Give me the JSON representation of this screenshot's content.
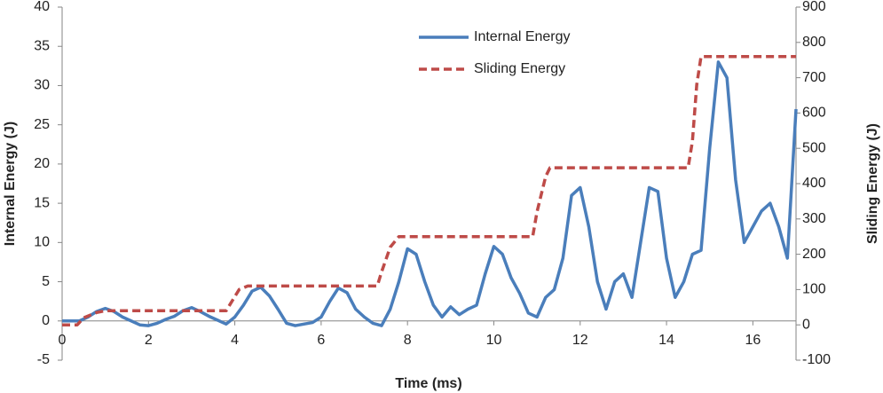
{
  "chart_data": {
    "type": "line",
    "xlabel": "Time (ms)",
    "ylabel": "Internal Energy (J)",
    "y2label": "Sliding Energy (J)",
    "xlim": [
      0,
      17
    ],
    "xticks": [
      0,
      2,
      4,
      6,
      8,
      10,
      12,
      14,
      16
    ],
    "ylim": [
      -5,
      40
    ],
    "yticks": [
      -5,
      0,
      5,
      10,
      15,
      20,
      25,
      30,
      35,
      40
    ],
    "y2lim": [
      -100,
      900
    ],
    "y2ticks": [
      -100,
      0,
      100,
      200,
      300,
      400,
      500,
      600,
      700,
      800,
      900
    ],
    "grid": false,
    "legend": "top-center",
    "series": [
      {
        "name": "Internal Energy",
        "color": "#4a7ebb",
        "style": "solid",
        "x": [
          0,
          0.2,
          0.4,
          0.6,
          0.8,
          1.0,
          1.2,
          1.4,
          1.6,
          1.8,
          2.0,
          2.2,
          2.4,
          2.6,
          2.8,
          3.0,
          3.2,
          3.4,
          3.6,
          3.8,
          4.0,
          4.2,
          4.4,
          4.6,
          4.8,
          5.0,
          5.2,
          5.4,
          5.6,
          5.8,
          6.0,
          6.2,
          6.4,
          6.6,
          6.8,
          7.0,
          7.2,
          7.4,
          7.6,
          7.8,
          8.0,
          8.2,
          8.4,
          8.6,
          8.8,
          9.0,
          9.2,
          9.4,
          9.6,
          9.8,
          10.0,
          10.2,
          10.4,
          10.6,
          10.8,
          11.0,
          11.2,
          11.4,
          11.6,
          11.8,
          12.0,
          12.2,
          12.4,
          12.6,
          12.8,
          13.0,
          13.2,
          13.4,
          13.6,
          13.8,
          14.0,
          14.2,
          14.4,
          14.6,
          14.8,
          15.0,
          15.2,
          15.4,
          15.6,
          15.8,
          16.0,
          16.2,
          16.4,
          16.6,
          16.8,
          17.0
        ],
        "values": [
          0,
          0,
          0,
          0.5,
          1.2,
          1.6,
          1.2,
          0.5,
          0,
          -0.5,
          -0.6,
          -0.3,
          0.2,
          0.6,
          1.3,
          1.7,
          1.2,
          0.6,
          0.1,
          -0.4,
          0.5,
          2,
          3.8,
          4.3,
          3.2,
          1.5,
          -0.3,
          -0.6,
          -0.4,
          -0.2,
          0.5,
          2.5,
          4.2,
          3.6,
          1.5,
          0.5,
          -0.3,
          -0.6,
          1.5,
          5,
          9.2,
          8.5,
          5,
          2,
          0.5,
          1.8,
          0.8,
          1.5,
          2,
          6,
          9.5,
          8.5,
          5.5,
          3.5,
          1,
          0.5,
          3,
          4,
          8,
          16,
          17,
          12,
          5,
          1.5,
          5,
          6,
          3,
          10,
          17,
          16.5,
          8,
          3,
          5,
          8.5,
          9,
          22,
          33,
          31,
          18,
          10,
          12,
          14,
          15,
          12,
          8,
          27
        ]
      },
      {
        "name": "Sliding Energy",
        "color": "#be4b48",
        "style": "dashed",
        "axis": "y2",
        "x": [
          0,
          0.35,
          0.5,
          0.8,
          1.0,
          3.8,
          3.9,
          4.1,
          4.3,
          7.3,
          7.4,
          7.6,
          7.8,
          10.9,
          11.0,
          11.2,
          11.3,
          14.5,
          14.6,
          14.7,
          14.8,
          17
        ],
        "values": [
          0,
          0,
          20,
          35,
          40,
          40,
          60,
          100,
          110,
          110,
          150,
          220,
          250,
          250,
          320,
          420,
          445,
          445,
          520,
          680,
          760,
          760
        ]
      }
    ]
  }
}
